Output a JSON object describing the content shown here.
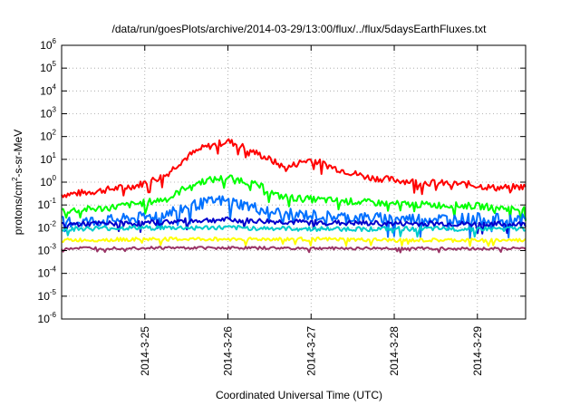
{
  "chart_data": {
    "type": "line",
    "title": "/data/run/goesPlots/archive/2014-03-29/13:00/flux/../flux/5daysEarthFluxes.txt",
    "xlabel": "Coordinated Universal Time (UTC)",
    "ylabel": {
      "prefix": "protons/cm",
      "superscript": "2",
      "suffix": "-s-sr-MeV"
    },
    "y_scale": "log",
    "ylim_exponents": [
      -6,
      6
    ],
    "y_ticks": [
      {
        "base": "10",
        "exp": "6"
      },
      {
        "base": "10",
        "exp": "5"
      },
      {
        "base": "10",
        "exp": "4"
      },
      {
        "base": "10",
        "exp": "3"
      },
      {
        "base": "10",
        "exp": "2"
      },
      {
        "base": "10",
        "exp": "1"
      },
      {
        "base": "10",
        "exp": "0"
      },
      {
        "base": "10",
        "exp": "-1"
      },
      {
        "base": "10",
        "exp": "-2"
      },
      {
        "base": "10",
        "exp": "-3"
      },
      {
        "base": "10",
        "exp": "-4"
      },
      {
        "base": "10",
        "exp": "-5"
      },
      {
        "base": "10",
        "exp": "-6"
      }
    ],
    "xlim_days": [
      24.0,
      29.58
    ],
    "x_ticks": [
      {
        "label": "2014-3-25",
        "day": 25
      },
      {
        "label": "2014-3-26",
        "day": 26
      },
      {
        "label": "2014-3-27",
        "day": 27
      },
      {
        "label": "2014-3-28",
        "day": 28
      },
      {
        "label": "2014-3-29",
        "day": 29
      }
    ],
    "grid": true,
    "series": [
      {
        "color": "#ff0000",
        "noise": 0.15,
        "points": [
          [
            24.0,
            -0.55
          ],
          [
            24.3,
            -0.45
          ],
          [
            24.6,
            -0.3
          ],
          [
            24.9,
            -0.15
          ],
          [
            25.1,
            0.1
          ],
          [
            25.25,
            0.3
          ],
          [
            25.4,
            0.8
          ],
          [
            25.55,
            1.2
          ],
          [
            25.7,
            1.5
          ],
          [
            25.9,
            1.7
          ],
          [
            26.0,
            1.8
          ],
          [
            26.15,
            1.6
          ],
          [
            26.3,
            1.35
          ],
          [
            26.5,
            1.0
          ],
          [
            26.7,
            0.6
          ],
          [
            26.85,
            0.85
          ],
          [
            27.0,
            1.0
          ],
          [
            27.15,
            0.8
          ],
          [
            27.3,
            0.6
          ],
          [
            27.5,
            0.4
          ],
          [
            27.7,
            0.2
          ],
          [
            28.0,
            0.1
          ],
          [
            28.3,
            0.0
          ],
          [
            28.6,
            -0.05
          ],
          [
            28.9,
            -0.1
          ],
          [
            29.2,
            -0.25
          ],
          [
            29.58,
            -0.2
          ]
        ]
      },
      {
        "color": "#00ff00",
        "noise": 0.15,
        "points": [
          [
            24.0,
            -1.25
          ],
          [
            24.5,
            -1.15
          ],
          [
            25.0,
            -0.9
          ],
          [
            25.3,
            -0.7
          ],
          [
            25.5,
            -0.2
          ],
          [
            25.7,
            0.05
          ],
          [
            25.9,
            0.15
          ],
          [
            26.05,
            0.2
          ],
          [
            26.2,
            0.05
          ],
          [
            26.4,
            -0.2
          ],
          [
            26.6,
            -0.6
          ],
          [
            26.8,
            -0.7
          ],
          [
            27.0,
            -0.75
          ],
          [
            27.5,
            -0.85
          ],
          [
            28.0,
            -0.95
          ],
          [
            28.5,
            -1.0
          ],
          [
            29.0,
            -1.05
          ],
          [
            29.58,
            -1.2
          ]
        ]
      },
      {
        "color": "#0070ff",
        "noise": 0.25,
        "points": [
          [
            24.0,
            -1.75
          ],
          [
            24.5,
            -1.7
          ],
          [
            25.0,
            -1.55
          ],
          [
            25.3,
            -1.3
          ],
          [
            25.6,
            -1.0
          ],
          [
            25.9,
            -0.8
          ],
          [
            26.15,
            -0.95
          ],
          [
            26.4,
            -1.2
          ],
          [
            26.7,
            -1.4
          ],
          [
            27.0,
            -1.45
          ],
          [
            27.5,
            -1.55
          ],
          [
            28.0,
            -1.6
          ],
          [
            28.5,
            -1.6
          ],
          [
            29.0,
            -1.6
          ],
          [
            29.58,
            -1.65
          ]
        ]
      },
      {
        "color": "#0000cc",
        "noise": 0.12,
        "points": [
          [
            24.0,
            -1.85
          ],
          [
            24.5,
            -1.82
          ],
          [
            25.0,
            -1.8
          ],
          [
            25.5,
            -1.7
          ],
          [
            25.9,
            -1.65
          ],
          [
            26.3,
            -1.7
          ],
          [
            26.8,
            -1.75
          ],
          [
            27.5,
            -1.8
          ],
          [
            28.0,
            -1.82
          ],
          [
            28.5,
            -1.82
          ],
          [
            29.0,
            -1.85
          ],
          [
            29.58,
            -1.85
          ]
        ]
      },
      {
        "color": "#00cccc",
        "noise": 0.1,
        "points": [
          [
            24.0,
            -2.05
          ],
          [
            25.0,
            -2.0
          ],
          [
            26.0,
            -2.0
          ],
          [
            27.0,
            -2.05
          ],
          [
            28.0,
            -2.05
          ],
          [
            29.0,
            -2.05
          ],
          [
            29.58,
            -2.05
          ]
        ]
      },
      {
        "color": "#ffff00",
        "noise": 0.08,
        "points": [
          [
            24.0,
            -2.55
          ],
          [
            25.0,
            -2.5
          ],
          [
            26.0,
            -2.5
          ],
          [
            27.0,
            -2.5
          ],
          [
            28.0,
            -2.55
          ],
          [
            29.0,
            -2.55
          ],
          [
            29.58,
            -2.55
          ]
        ]
      },
      {
        "color": "#993366",
        "noise": 0.06,
        "points": [
          [
            24.0,
            -2.9
          ],
          [
            25.0,
            -2.88
          ],
          [
            26.0,
            -2.88
          ],
          [
            27.0,
            -2.9
          ],
          [
            28.0,
            -2.9
          ],
          [
            29.0,
            -2.92
          ],
          [
            29.58,
            -2.9
          ]
        ]
      }
    ]
  }
}
